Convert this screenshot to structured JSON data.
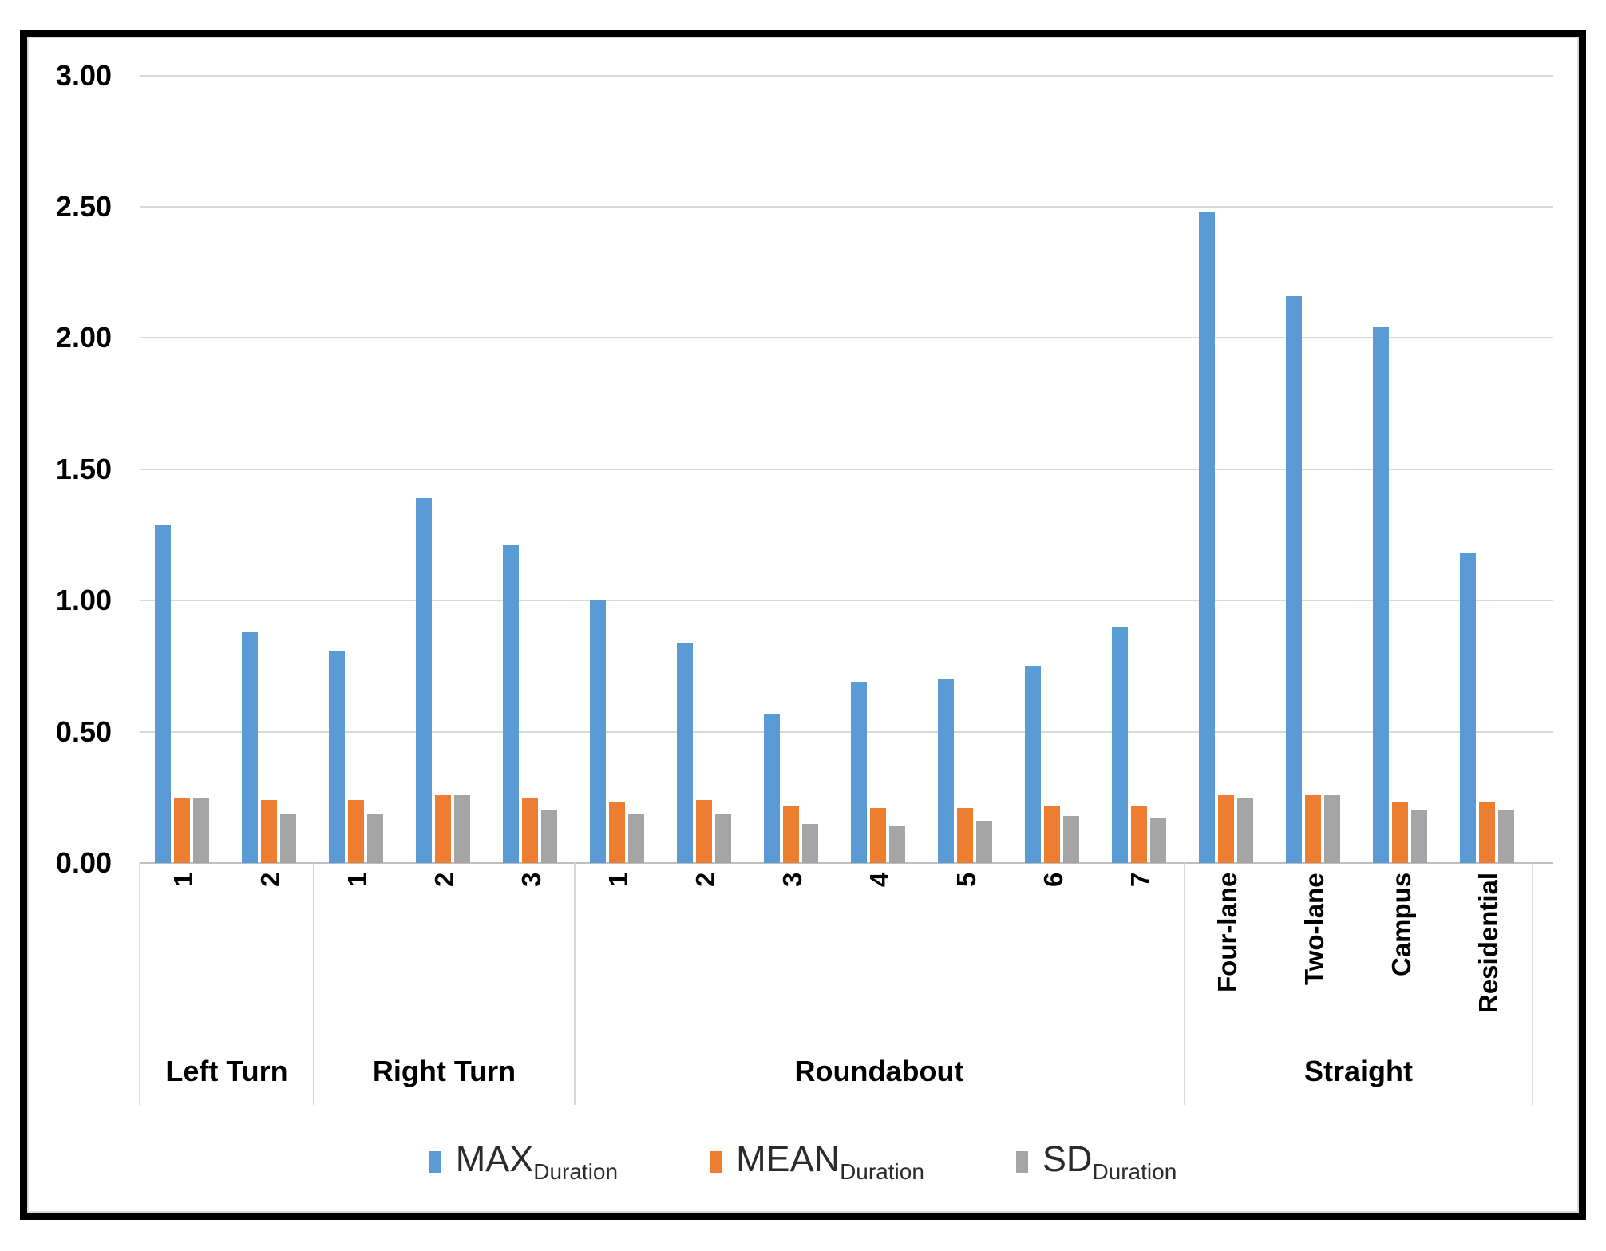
{
  "chart_data": {
    "type": "bar",
    "title": "",
    "xlabel": "",
    "ylabel": "",
    "y_axis": {
      "min": 0,
      "max": 3,
      "step": 0.5,
      "ticks": [
        "3.00",
        "2.50",
        "2.00",
        "1.50",
        "1.00",
        "0.50",
        "0.00"
      ]
    },
    "grid": true,
    "legend_position": "bottom",
    "groups": [
      {
        "label": "Left Turn",
        "categories": [
          "1",
          "2"
        ]
      },
      {
        "label": "Right Turn",
        "categories": [
          "1",
          "2",
          "3"
        ]
      },
      {
        "label": "Roundabout",
        "categories": [
          "1",
          "2",
          "3",
          "4",
          "5",
          "6",
          "7"
        ]
      },
      {
        "label": "Straight",
        "categories": [
          "Four-lane",
          "Two-lane",
          "Campus",
          "Residential"
        ]
      }
    ],
    "series": [
      {
        "name": "MAX",
        "subscript": "Duration",
        "color": "#5B9BD5",
        "values": [
          1.29,
          0.88,
          0.81,
          1.39,
          1.21,
          1.0,
          0.84,
          0.57,
          0.69,
          0.7,
          0.75,
          0.9,
          2.48,
          2.16,
          2.04,
          1.18
        ]
      },
      {
        "name": "MEAN",
        "subscript": "Duration",
        "color": "#ED7D31",
        "values": [
          0.25,
          0.24,
          0.24,
          0.26,
          0.25,
          0.23,
          0.24,
          0.22,
          0.21,
          0.21,
          0.22,
          0.22,
          0.26,
          0.26,
          0.23,
          0.23
        ]
      },
      {
        "name": "SD",
        "subscript": "Duration",
        "color": "#A5A5A5",
        "values": [
          0.25,
          0.19,
          0.19,
          0.26,
          0.2,
          0.19,
          0.19,
          0.15,
          0.14,
          0.16,
          0.18,
          0.17,
          0.25,
          0.26,
          0.2,
          0.2
        ]
      }
    ]
  }
}
